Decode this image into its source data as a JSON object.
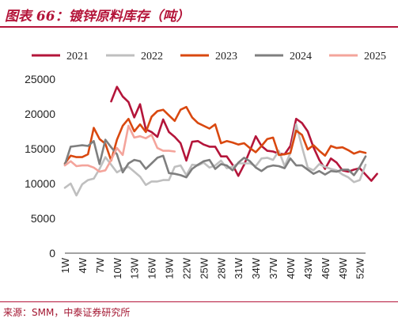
{
  "header": {
    "title": "图表 66：镀锌原料库存（吨）"
  },
  "footer": {
    "source": "来源：SMM，中泰证券研究所"
  },
  "chart_data": {
    "type": "line",
    "xlabel": "",
    "ylabel": "",
    "ylim": [
      0,
      25000
    ],
    "yticks": [
      "0",
      "5000",
      "10000",
      "15000",
      "20000",
      "25000"
    ],
    "x_tick_labels": [
      "1W",
      "4W",
      "7W",
      "10W",
      "13W",
      "16W",
      "19W",
      "22W",
      "25W",
      "28W",
      "31W",
      "34W",
      "37W",
      "40W",
      "43W",
      "46W",
      "49W",
      "52W"
    ],
    "week_count": 53,
    "legend_position": "top",
    "grid": false,
    "series": [
      {
        "name": "2021",
        "color": "#b4153a",
        "start_week": 9,
        "values": [
          21800,
          23900,
          22500,
          21700,
          19500,
          21400,
          17800,
          17400,
          16700,
          19200,
          17400,
          16700,
          15800,
          13300,
          16000,
          16100,
          15600,
          15300,
          15300,
          13900,
          13900,
          12700,
          11100,
          12700,
          14700,
          16800,
          15400,
          14700,
          14600,
          14300,
          14200,
          15400,
          19300,
          18700,
          17500,
          15200,
          13400,
          12100,
          13600,
          13000,
          11900,
          11700,
          12000,
          12200,
          11300,
          10400,
          11400
        ]
      },
      {
        "name": "2022",
        "color": "#bfbfbf",
        "start_week": 1,
        "values": [
          9400,
          10000,
          8300,
          9900,
          10500,
          10700,
          12100,
          13800,
          12700,
          11600,
          12100,
          12400,
          11700,
          11000,
          9800,
          10300,
          10300,
          10500,
          10500,
          12400,
          12600,
          11200,
          12700,
          12600,
          13000,
          12300,
          12600,
          13300,
          12200,
          12400,
          12900,
          12900,
          12900,
          12500,
          13600,
          13700,
          13400,
          14700,
          12500,
          14400,
          18500,
          15300,
          12300,
          11900,
          12800,
          12400,
          12100,
          11900,
          11300,
          10900,
          10200,
          10500,
          12700
        ]
      },
      {
        "name": "2023",
        "color": "#d9480f",
        "start_week": 1,
        "values": [
          12900,
          14000,
          13800,
          13800,
          14200,
          18000,
          16400,
          15700,
          13300,
          16300,
          18300,
          19300,
          17500,
          18500,
          17400,
          19600,
          20400,
          20600,
          19800,
          19000,
          20600,
          21000,
          19500,
          18700,
          18300,
          17900,
          18500,
          15800,
          16100,
          15900,
          15600,
          15800,
          15100,
          14500,
          15400,
          16400,
          16600,
          14100,
          14200,
          14400,
          17600,
          17000,
          14900,
          15500,
          14700,
          14000,
          15400,
          15100,
          15200,
          14800,
          14300,
          14600,
          14400
        ]
      },
      {
        "name": "2024",
        "color": "#7f7f7f",
        "start_week": 1,
        "values": [
          12700,
          15300,
          15400,
          15500,
          15400,
          16100,
          12800,
          16300,
          15200,
          14200,
          11600,
          12900,
          13400,
          13200,
          12100,
          12900,
          13700,
          14000,
          11500,
          11400,
          11200,
          10900,
          12100,
          12700,
          13200,
          13400,
          12100,
          12800,
          12600,
          11900,
          13000,
          13700,
          13200,
          12300,
          11800,
          12400,
          12600,
          12500,
          12200,
          13600,
          12600,
          12600,
          12000,
          11400,
          11800,
          11300,
          11800,
          11700,
          12000,
          12000,
          11200,
          12400,
          13900
        ]
      },
      {
        "name": "2025",
        "color": "#f4a49b",
        "start_week": 1,
        "values": [
          12600,
          13200,
          12500,
          12600,
          12600,
          12300,
          11700,
          11900,
          13400,
          15100,
          14100,
          18300,
          16600,
          16800,
          16500,
          17000,
          15100,
          14700,
          14700,
          14600
        ]
      }
    ]
  }
}
